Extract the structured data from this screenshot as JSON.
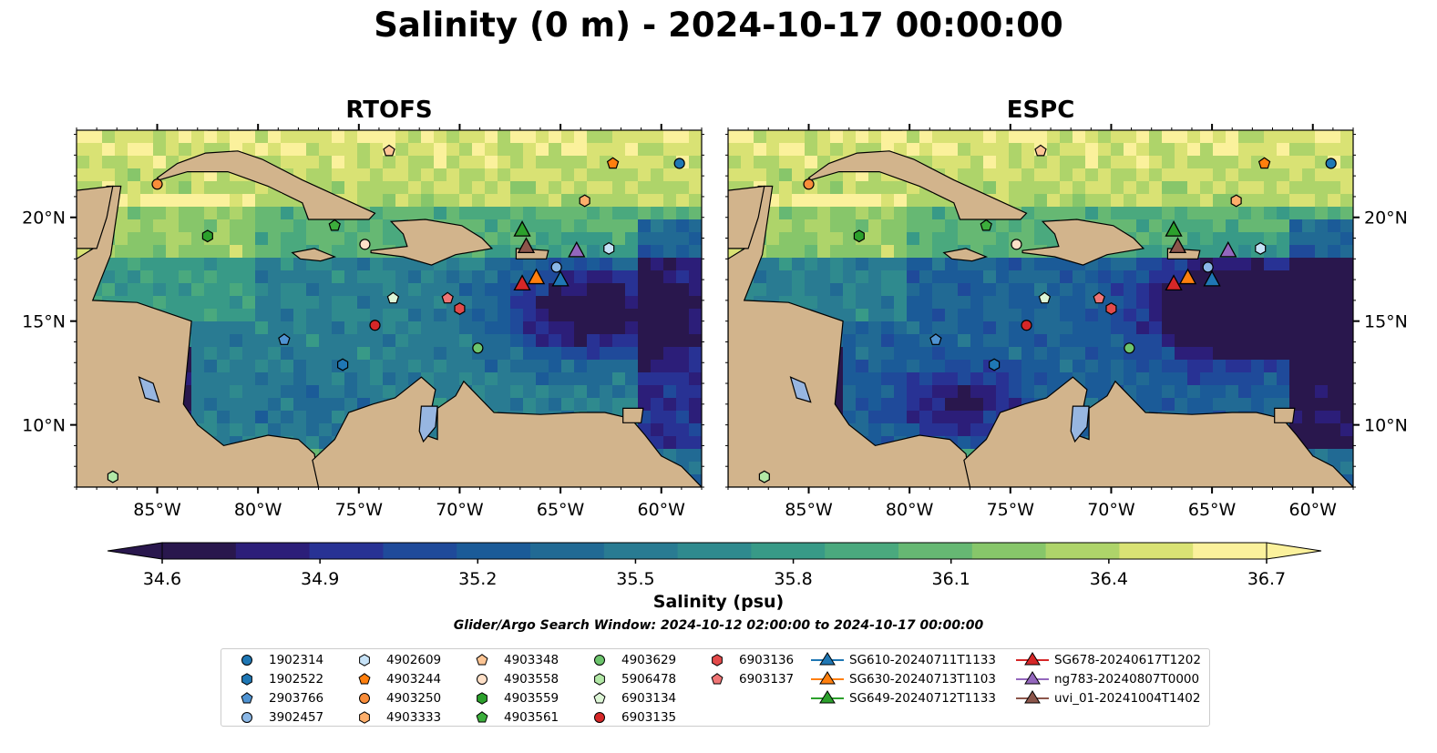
{
  "title": "Salinity (0 m) - 2024-10-17 00:00:00",
  "colors": {
    "land": "#d2b48c",
    "lakes": "#97b6e1",
    "cmap": [
      "#29174d",
      "#2c1e79",
      "#283294",
      "#1f4a9a",
      "#1b5b98",
      "#216a94",
      "#297b92",
      "#2f8a8e",
      "#389a87",
      "#4aa97e",
      "#66b873",
      "#87c66a",
      "#aed46a",
      "#d9e274",
      "#fbf19c"
    ]
  },
  "panels": [
    {
      "title": "RTOFS"
    },
    {
      "title": "ESPC"
    }
  ],
  "colorbar": {
    "label": "Salinity (psu)",
    "ticks": [
      "34.6",
      "34.9",
      "35.2",
      "35.5",
      "35.8",
      "36.1",
      "36.4",
      "36.7"
    ],
    "min": 34.6,
    "max": 36.7
  },
  "search_window": "Glider/Argo Search Window: 2024-10-12 02:00:00 to 2024-10-17 00:00:00",
  "chart_data": {
    "type": "map",
    "field": "salinity",
    "depth": "0 m",
    "xlim": [
      -89,
      -58
    ],
    "ylim": [
      7,
      24.2
    ],
    "x_ticks": [
      {
        "value": -85,
        "label": "85°W"
      },
      {
        "value": -80,
        "label": "80°W"
      },
      {
        "value": -75,
        "label": "75°W"
      },
      {
        "value": -70,
        "label": "70°W"
      },
      {
        "value": -65,
        "label": "65°W"
      },
      {
        "value": -60,
        "label": "60°W"
      }
    ],
    "y_ticks": [
      {
        "value": 10,
        "label": "10°N"
      },
      {
        "value": 15,
        "label": "15°N"
      },
      {
        "value": 20,
        "label": "20°N"
      }
    ],
    "argo_floats": [
      {
        "id": "1902314",
        "marker": "circle",
        "color": "#1f77b4",
        "lon": -59.1,
        "lat": 22.6
      },
      {
        "id": "1902522",
        "marker": "hexagon",
        "color": "#1f77b4",
        "lon": -75.8,
        "lat": 12.9
      },
      {
        "id": "2903766",
        "marker": "pentagon",
        "color": "#4f93d2",
        "lon": -78.7,
        "lat": 14.1
      },
      {
        "id": "3902457",
        "marker": "circle",
        "color": "#8ab7e6",
        "lon": -65.2,
        "lat": 17.6
      },
      {
        "id": "4902609",
        "marker": "hexagon",
        "color": "#c6e2f7",
        "lon": -62.6,
        "lat": 18.5
      },
      {
        "id": "4903244",
        "marker": "pentagon",
        "color": "#ff7f0e",
        "lon": -62.4,
        "lat": 22.6
      },
      {
        "id": "4903250",
        "marker": "circle",
        "color": "#f98d3a",
        "lon": -85.0,
        "lat": 21.6
      },
      {
        "id": "4903333",
        "marker": "hexagon",
        "color": "#fdae6b",
        "lon": -63.8,
        "lat": 20.8
      },
      {
        "id": "4903348",
        "marker": "pentagon",
        "color": "#fdc594",
        "lon": -73.5,
        "lat": 23.2
      },
      {
        "id": "4903558",
        "marker": "circle",
        "color": "#fee0c8",
        "lon": -74.7,
        "lat": 18.7
      },
      {
        "id": "4903559",
        "marker": "hexagon",
        "color": "#2ca02c",
        "lon": -82.5,
        "lat": 19.1
      },
      {
        "id": "4903561",
        "marker": "pentagon",
        "color": "#3cae3c",
        "lon": -76.2,
        "lat": 19.6
      },
      {
        "id": "4903629",
        "marker": "circle",
        "color": "#6cc46c",
        "lon": -69.1,
        "lat": 13.7
      },
      {
        "id": "5906478",
        "marker": "hexagon",
        "color": "#b2e8a6",
        "lon": -87.2,
        "lat": 7.5
      },
      {
        "id": "6903134",
        "marker": "pentagon",
        "color": "#ddf6d6",
        "lon": -73.3,
        "lat": 16.1
      },
      {
        "id": "6903135",
        "marker": "circle",
        "color": "#d62728",
        "lon": -74.2,
        "lat": 14.8
      },
      {
        "id": "6903136",
        "marker": "hexagon",
        "color": "#e34a4a",
        "lon": -70.0,
        "lat": 15.6
      },
      {
        "id": "6903137",
        "marker": "pentagon",
        "color": "#f07575",
        "lon": -70.6,
        "lat": 16.1
      }
    ],
    "gliders": [
      {
        "id": "SG610-20240711T1133",
        "color": "#1f77b4",
        "lon": -65.0,
        "lat": 17.0
      },
      {
        "id": "SG630-20240713T1103",
        "color": "#ff7f0e",
        "lon": -66.2,
        "lat": 17.1
      },
      {
        "id": "SG649-20240712T1133",
        "color": "#2ca02c",
        "lon": -66.9,
        "lat": 19.4
      },
      {
        "id": "SG678-20240617T1202",
        "color": "#d62728",
        "lon": -66.9,
        "lat": 16.8
      },
      {
        "id": "ng783-20240807T0000",
        "color": "#9467bd",
        "lon": -64.2,
        "lat": 18.4
      },
      {
        "id": "uvi_01-20241004T1402",
        "color": "#8c564b",
        "lon": -66.7,
        "lat": 18.6
      }
    ]
  }
}
